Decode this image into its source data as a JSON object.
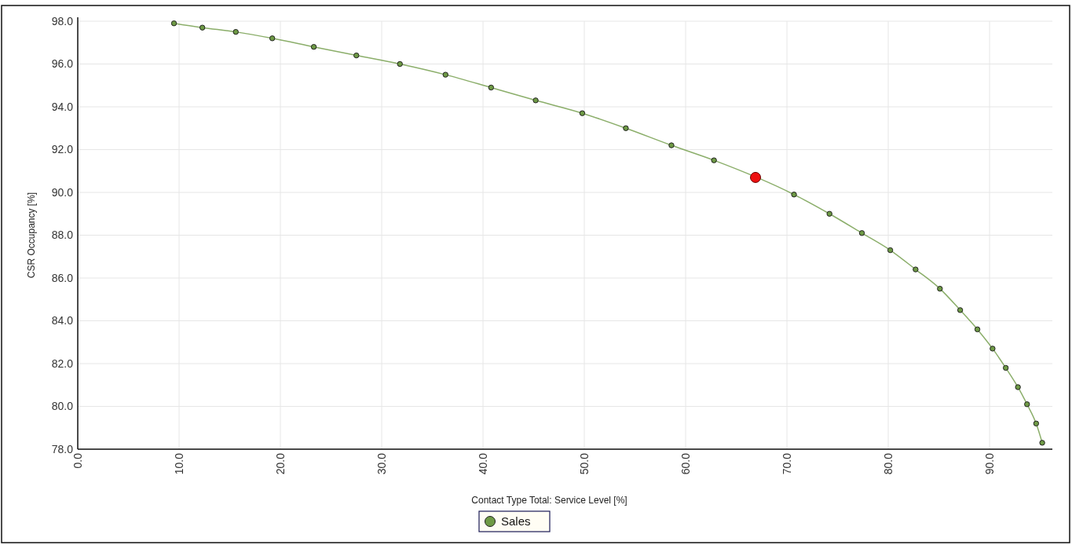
{
  "chart_data": {
    "type": "line",
    "xlabel": "Contact Type Total: Service Level [%]",
    "ylabel": "CSR Occupancy [%]",
    "xlim": [
      0,
      96.2
    ],
    "ylim": [
      78,
      98
    ],
    "xticks": [
      {
        "value": 0,
        "label": "0.0"
      },
      {
        "value": 10,
        "label": "10.0"
      },
      {
        "value": 20,
        "label": "20.0"
      },
      {
        "value": 30,
        "label": "30.0"
      },
      {
        "value": 40,
        "label": "40.0"
      },
      {
        "value": 50,
        "label": "50.0"
      },
      {
        "value": 60,
        "label": "60.0"
      },
      {
        "value": 70,
        "label": "70.0"
      },
      {
        "value": 80,
        "label": "80.0"
      },
      {
        "value": 90,
        "label": "90.0"
      }
    ],
    "yticks": [
      {
        "value": 78,
        "label": "78.0"
      },
      {
        "value": 80,
        "label": "80.0"
      },
      {
        "value": 82,
        "label": "82.0"
      },
      {
        "value": 84,
        "label": "84.0"
      },
      {
        "value": 86,
        "label": "86.0"
      },
      {
        "value": 88,
        "label": "88.0"
      },
      {
        "value": 90,
        "label": "90.0"
      },
      {
        "value": 92,
        "label": "92.0"
      },
      {
        "value": 94,
        "label": "94.0"
      },
      {
        "value": 96,
        "label": "96.0"
      },
      {
        "value": 98,
        "label": "98.0"
      }
    ],
    "grid": true,
    "legend": "bottom",
    "marker": "circle",
    "series": [
      {
        "name": "Sales",
        "color": "#6e9a45",
        "x": [
          9.5,
          12.3,
          15.6,
          19.2,
          23.3,
          27.5,
          31.8,
          36.3,
          40.8,
          45.2,
          49.8,
          54.1,
          58.6,
          62.8,
          70.7,
          74.2,
          77.4,
          80.2,
          82.7,
          85.1,
          87.1,
          88.8,
          90.3,
          91.6,
          92.8,
          93.7,
          94.6,
          95.2
        ],
        "values": [
          97.9,
          97.7,
          97.5,
          97.2,
          96.8,
          96.4,
          96.0,
          95.5,
          94.9,
          94.3,
          93.7,
          93.0,
          92.2,
          91.5,
          89.9,
          89.0,
          88.1,
          87.3,
          86.4,
          85.5,
          84.5,
          83.6,
          82.7,
          81.8,
          80.9,
          80.1,
          79.2,
          78.3
        ]
      },
      {
        "type": "scatter",
        "color": "#ee1111",
        "x": [
          66.9
        ],
        "values": [
          90.7
        ]
      }
    ]
  }
}
